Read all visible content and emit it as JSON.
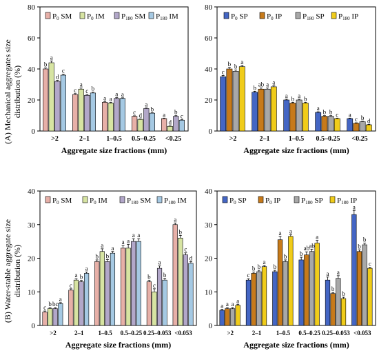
{
  "ylabels": {
    "top": [
      "(A) Mechanical aggregates size",
      "distribution (%)"
    ],
    "bottom": [
      "(B) Water-stable aggregate size",
      "distribution (%)"
    ]
  },
  "chart_data": [
    {
      "type": "bar",
      "xlabel": "Aggregate size fractions (mm)",
      "ylim": [
        0,
        80
      ],
      "yticks": [
        0,
        20,
        40,
        60,
        80
      ],
      "legend_placement": "top",
      "categories": [
        ">2",
        "2–1",
        "1–0.5",
        "0.5–0.25",
        "<0.25"
      ],
      "series": [
        {
          "name_main": "P",
          "name_sub": "0",
          "name_tail": " SM",
          "color": "#e7b0a8",
          "values": [
            40,
            23.5,
            18.5,
            9.5,
            8
          ],
          "errors": [
            0.6,
            0.6,
            0.4,
            0.3,
            0.3
          ],
          "letters": [
            "b",
            "c",
            "a",
            "c",
            "a"
          ]
        },
        {
          "name_main": "P",
          "name_sub": "0",
          "name_tail": " IM",
          "color": "#d7e4a2",
          "values": [
            44,
            27,
            18,
            7.5,
            3
          ],
          "errors": [
            1.2,
            0.7,
            0.4,
            0.3,
            0.3
          ],
          "letters": [
            "a",
            "a",
            "a",
            "d",
            "d"
          ]
        },
        {
          "name_main": "P",
          "name_sub": "180",
          "name_tail": " SM",
          "color": "#b2a7c9",
          "values": [
            32,
            23,
            21,
            14.5,
            9.5
          ],
          "errors": [
            0.6,
            0.6,
            0.5,
            0.4,
            0.4
          ],
          "letters": [
            "d",
            "c",
            "a",
            "a",
            "b"
          ]
        },
        {
          "name_main": "P",
          "name_sub": "180",
          "name_tail": " IM",
          "color": "#a5c9e3",
          "values": [
            36,
            24.5,
            21,
            11.5,
            7
          ],
          "errors": [
            0.6,
            0.6,
            0.4,
            0.3,
            0.3
          ],
          "letters": [
            "c",
            "b",
            "a",
            "b",
            "c"
          ]
        }
      ]
    },
    {
      "type": "bar",
      "xlabel": "Aggregate size fractions (mm)",
      "ylim": [
        0,
        80
      ],
      "yticks": [
        0,
        20,
        40,
        60,
        80
      ],
      "legend_placement": "top",
      "categories": [
        ">2",
        "2–1",
        "1–0.5",
        "0.5–0.25",
        "<0.25"
      ],
      "series": [
        {
          "name_main": "P",
          "name_sub": "0",
          "name_tail": " SP",
          "color": "#4466c4",
          "values": [
            35,
            25,
            20,
            12,
            8
          ],
          "errors": [
            0.8,
            0.6,
            0.5,
            0.4,
            0.3
          ],
          "letters": [
            "c",
            "b",
            "a",
            "a",
            "a"
          ]
        },
        {
          "name_main": "P",
          "name_sub": "0",
          "name_tail": " IP",
          "color": "#c77a1a",
          "values": [
            40,
            27,
            18,
            9.5,
            5
          ],
          "errors": [
            1,
            0.7,
            0.5,
            0.4,
            0.3
          ],
          "letters": [
            "b",
            "ab",
            "b",
            "b",
            "c"
          ]
        },
        {
          "name_main": "P",
          "name_sub": "180",
          "name_tail": " SP",
          "color": "#a8a8a8",
          "values": [
            38.5,
            27,
            20,
            9.5,
            6
          ],
          "errors": [
            0.8,
            0.7,
            0.5,
            0.4,
            0.3
          ],
          "letters": [
            "b",
            "a",
            "a",
            "b",
            "b"
          ]
        },
        {
          "name_main": "P",
          "name_sub": "180",
          "name_tail": " IP",
          "color": "#f0cc1a",
          "values": [
            41.5,
            28.5,
            18,
            8,
            4
          ],
          "errors": [
            0.8,
            0.7,
            0.5,
            0.3,
            0.3
          ],
          "letters": [
            "a",
            "a",
            "b",
            "c",
            "d"
          ]
        }
      ]
    },
    {
      "type": "bar",
      "xlabel": "Aggregate size fractions (mm)",
      "ylim": [
        0,
        40
      ],
      "yticks": [
        0,
        10,
        20,
        30,
        40
      ],
      "legend_placement": "top",
      "categories": [
        ">2",
        "2–1",
        "1–0.5",
        "0.5–0.25",
        "0.25–0.053",
        "<0.053"
      ],
      "series": [
        {
          "name_main": "P",
          "name_sub": "0",
          "name_tail": " SM",
          "color": "#e7b0a8",
          "values": [
            4,
            10.5,
            19,
            23,
            13,
            30
          ],
          "errors": [
            0.3,
            0.4,
            0.5,
            0.8,
            0.4,
            0.5
          ],
          "letters": [
            "c",
            "c",
            "b",
            "a",
            "b",
            "a"
          ]
        },
        {
          "name_main": "P",
          "name_sub": "0",
          "name_tail": " IM",
          "color": "#d7e4a2",
          "values": [
            5,
            13.5,
            22,
            23,
            10,
            26
          ],
          "errors": [
            0.3,
            0.4,
            0.8,
            1.1,
            0.9,
            0.8
          ],
          "letters": [
            "b",
            "a",
            "a",
            "a",
            "c",
            "b"
          ]
        },
        {
          "name_main": "P",
          "name_sub": "180",
          "name_tail": " SM",
          "color": "#b2a7c9",
          "values": [
            5,
            13,
            19,
            25,
            17,
            21
          ],
          "errors": [
            0.3,
            0.4,
            0.6,
            0.8,
            0.7,
            0.6
          ],
          "letters": [
            "bc",
            "b",
            "b",
            "a",
            "a",
            "c"
          ]
        },
        {
          "name_main": "P",
          "name_sub": "180",
          "name_tail": " IM",
          "color": "#a5c9e3",
          "values": [
            6.5,
            15.5,
            21.5,
            25,
            13.5,
            18.5
          ],
          "errors": [
            0.3,
            0.4,
            0.5,
            0.8,
            0.5,
            0.5
          ],
          "letters": [
            "a",
            "a",
            "a",
            "a",
            "b",
            "d"
          ]
        }
      ]
    },
    {
      "type": "bar",
      "xlabel": "Aggregate size fractions (mm)",
      "ylim": [
        0,
        40
      ],
      "yticks": [
        0,
        10,
        20,
        30,
        40
      ],
      "legend_placement": "top",
      "categories": [
        ">2",
        "2–1",
        "1–0.5",
        "0.5–0.25",
        "0.25–0.053",
        "<0.053"
      ],
      "series": [
        {
          "name_main": "P",
          "name_sub": "0",
          "name_tail": " SP",
          "color": "#4466c4",
          "values": [
            4.5,
            13.5,
            16,
            19.5,
            13.5,
            33
          ],
          "errors": [
            0.3,
            0.4,
            0.4,
            0.8,
            0.9,
            1.2
          ],
          "letters": [
            "a",
            "c",
            "b",
            "b",
            "a",
            "a"
          ]
        },
        {
          "name_main": "P",
          "name_sub": "0",
          "name_tail": " IP",
          "color": "#c77a1a",
          "values": [
            5,
            15.5,
            25.5,
            21,
            9.5,
            22
          ],
          "errors": [
            0.3,
            0.4,
            1,
            0.9,
            0.3,
            0.5
          ],
          "letters": [
            "a",
            "b",
            "a",
            "ab",
            "b",
            "b"
          ]
        },
        {
          "name_main": "P",
          "name_sub": "180",
          "name_tail": " SP",
          "color": "#a8a8a8",
          "values": [
            5,
            16,
            19,
            22,
            14,
            24
          ],
          "errors": [
            0.3,
            0.4,
            0.5,
            0.7,
            0.8,
            0.5
          ],
          "letters": [
            "a",
            "b",
            "b",
            "ab",
            "a",
            "b"
          ]
        },
        {
          "name_main": "P",
          "name_sub": "180",
          "name_tail": " IP",
          "color": "#f0cc1a",
          "values": [
            6,
            17.5,
            26.5,
            24.5,
            8,
            17
          ],
          "errors": [
            0.3,
            0.3,
            0.5,
            0.8,
            0.4,
            0.3
          ],
          "letters": [
            "a",
            "a",
            "a",
            "a",
            "b",
            "c"
          ]
        }
      ]
    }
  ]
}
